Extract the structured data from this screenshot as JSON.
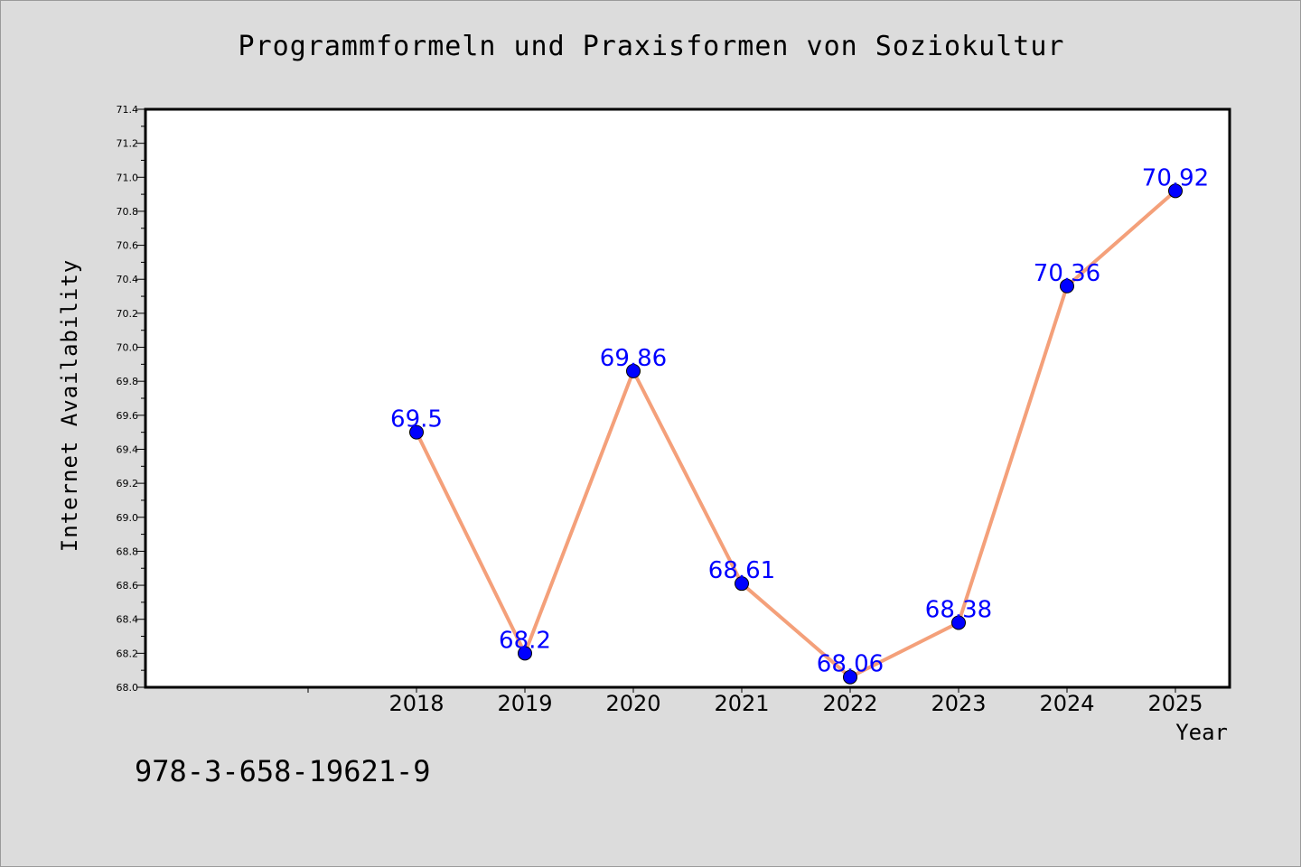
{
  "chart_data": {
    "type": "line",
    "title": "Programmformeln und Praxisformen von Soziokultur",
    "xlabel": "Year",
    "ylabel": "Internet Availability",
    "categories": [
      "2018",
      "2019",
      "2020",
      "2021",
      "2022",
      "2023",
      "2024",
      "2025"
    ],
    "series": [
      {
        "values": [
          69.5,
          68.2,
          69.86,
          68.61,
          68.06,
          68.38,
          70.36,
          70.92
        ],
        "labels": [
          "69.5",
          "68.2",
          "69.86",
          "68.61",
          "68.06",
          "68.38",
          "70.36",
          "70.92"
        ]
      }
    ],
    "ylim": [
      68.0,
      71.4
    ],
    "yticks": [
      "68.0",
      "68.2",
      "68.4",
      "68.6",
      "68.8",
      "69.0",
      "69.2",
      "69.4",
      "69.6",
      "69.8",
      "70.0",
      "70.2",
      "70.4",
      "70.6",
      "70.8",
      "71.0",
      "71.2",
      "71.4"
    ],
    "grid": false,
    "line_color": "#f4a07a",
    "marker_color": "#0000ff",
    "label_color": "#0000ff",
    "annotation": "978-3-658-19621-9"
  }
}
